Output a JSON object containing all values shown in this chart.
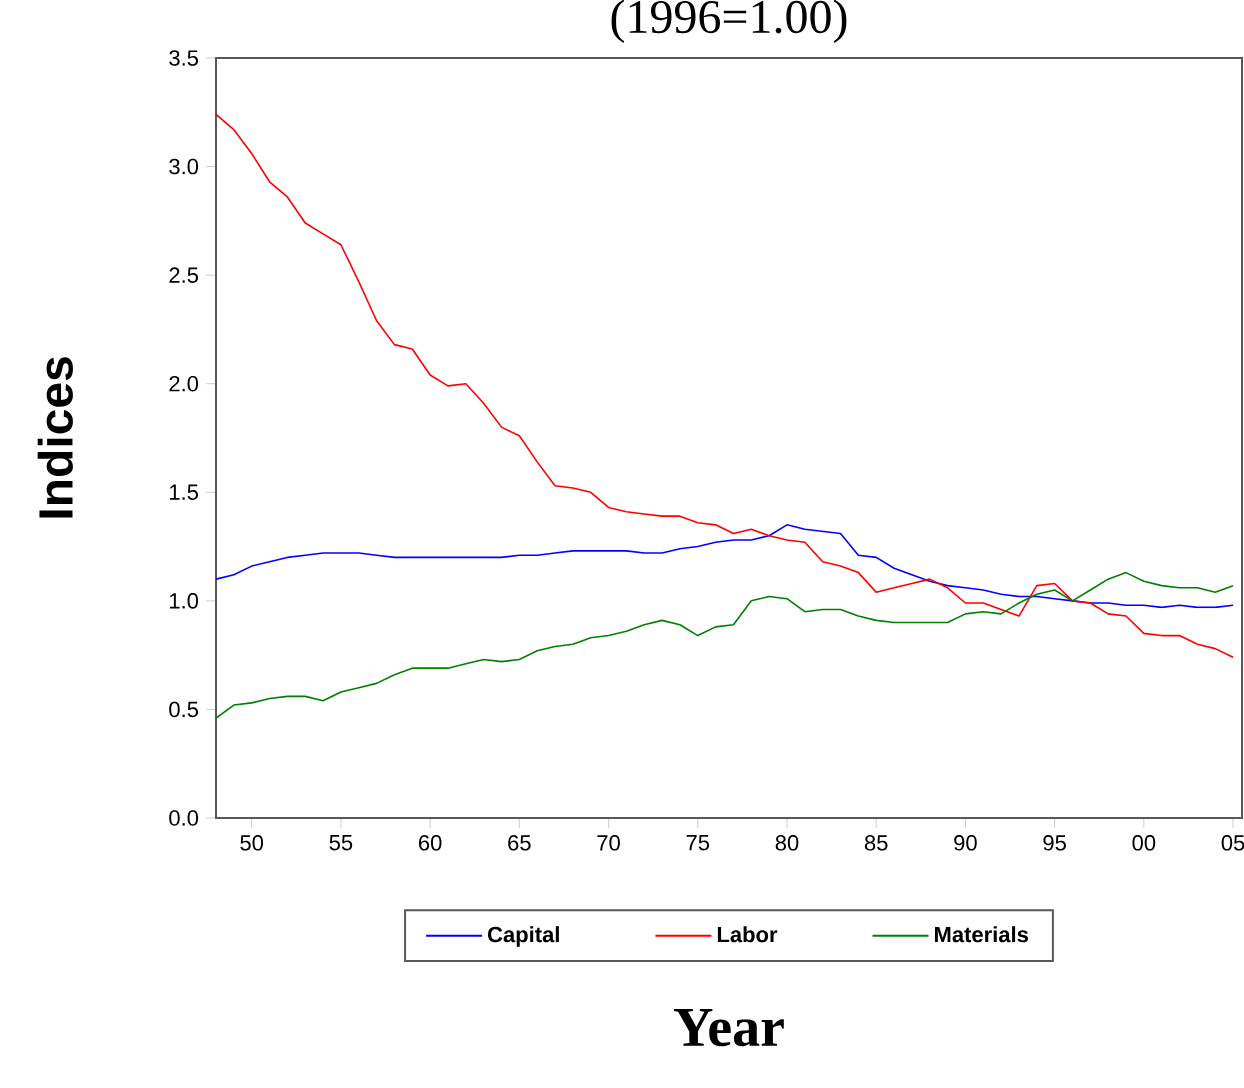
{
  "chart_data": {
    "type": "line",
    "title": "(1996=1.00)",
    "xlabel": "Year",
    "ylabel": "Indices",
    "x": [
      1948,
      1949,
      1950,
      1951,
      1952,
      1953,
      1954,
      1955,
      1956,
      1957,
      1958,
      1959,
      1960,
      1961,
      1962,
      1963,
      1964,
      1965,
      1966,
      1967,
      1968,
      1969,
      1970,
      1971,
      1972,
      1973,
      1974,
      1975,
      1976,
      1977,
      1978,
      1979,
      1980,
      1981,
      1982,
      1983,
      1984,
      1985,
      1986,
      1987,
      1988,
      1989,
      1990,
      1991,
      1992,
      1993,
      1994,
      1995,
      1996,
      1997,
      1998,
      1999,
      2000,
      2001,
      2002,
      2003,
      2004,
      2005
    ],
    "series": [
      {
        "name": "Capital",
        "color": "#0000ff",
        "values": [
          1.1,
          1.12,
          1.16,
          1.18,
          1.2,
          1.21,
          1.22,
          1.22,
          1.22,
          1.21,
          1.2,
          1.2,
          1.2,
          1.2,
          1.2,
          1.2,
          1.2,
          1.21,
          1.21,
          1.22,
          1.23,
          1.23,
          1.23,
          1.23,
          1.22,
          1.22,
          1.24,
          1.25,
          1.27,
          1.28,
          1.28,
          1.3,
          1.35,
          1.33,
          1.32,
          1.31,
          1.21,
          1.2,
          1.15,
          1.12,
          1.09,
          1.07,
          1.06,
          1.05,
          1.03,
          1.02,
          1.02,
          1.01,
          1.0,
          0.99,
          0.99,
          0.98,
          0.98,
          0.97,
          0.98,
          0.97,
          0.97,
          0.98
        ]
      },
      {
        "name": "Labor",
        "color": "#ff0000",
        "values": [
          3.24,
          3.17,
          3.06,
          2.93,
          2.86,
          2.74,
          2.69,
          2.64,
          2.47,
          2.29,
          2.18,
          2.16,
          2.04,
          1.99,
          2.0,
          1.91,
          1.8,
          1.76,
          1.64,
          1.53,
          1.52,
          1.5,
          1.43,
          1.41,
          1.4,
          1.39,
          1.39,
          1.36,
          1.35,
          1.31,
          1.33,
          1.3,
          1.28,
          1.27,
          1.18,
          1.16,
          1.13,
          1.04,
          1.06,
          1.08,
          1.1,
          1.06,
          0.99,
          0.99,
          0.96,
          0.93,
          1.07,
          1.08,
          1.0,
          0.99,
          0.94,
          0.93,
          0.85,
          0.84,
          0.84,
          0.8,
          0.78,
          0.74
        ]
      },
      {
        "name": "Materials",
        "color": "#008000",
        "values": [
          0.46,
          0.52,
          0.53,
          0.55,
          0.56,
          0.56,
          0.54,
          0.58,
          0.6,
          0.62,
          0.66,
          0.69,
          0.69,
          0.69,
          0.71,
          0.73,
          0.72,
          0.73,
          0.77,
          0.79,
          0.8,
          0.83,
          0.84,
          0.86,
          0.89,
          0.91,
          0.89,
          0.84,
          0.88,
          0.89,
          1.0,
          1.02,
          1.01,
          0.95,
          0.96,
          0.96,
          0.93,
          0.91,
          0.9,
          0.9,
          0.9,
          0.9,
          0.94,
          0.95,
          0.94,
          0.99,
          1.03,
          1.05,
          1.0,
          1.05,
          1.1,
          1.13,
          1.09,
          1.07,
          1.06,
          1.06,
          1.04,
          1.07
        ]
      }
    ],
    "xlim": [
      1948,
      2005.5
    ],
    "ylim": [
      0,
      3.5
    ],
    "xticks": [
      {
        "value": 1950,
        "label": "50"
      },
      {
        "value": 1955,
        "label": "55"
      },
      {
        "value": 1960,
        "label": "60"
      },
      {
        "value": 1965,
        "label": "65"
      },
      {
        "value": 1970,
        "label": "70"
      },
      {
        "value": 1975,
        "label": "75"
      },
      {
        "value": 1980,
        "label": "80"
      },
      {
        "value": 1985,
        "label": "85"
      },
      {
        "value": 1990,
        "label": "90"
      },
      {
        "value": 1995,
        "label": "95"
      },
      {
        "value": 2000,
        "label": "00"
      },
      {
        "value": 2005,
        "label": "05"
      }
    ],
    "yticks": [
      {
        "value": 0,
        "label": "0.0"
      },
      {
        "value": 0.5,
        "label": "0.5"
      },
      {
        "value": 1,
        "label": "1.0"
      },
      {
        "value": 1.5,
        "label": "1.5"
      },
      {
        "value": 2,
        "label": "2.0"
      },
      {
        "value": 2.5,
        "label": "2.5"
      },
      {
        "value": 3,
        "label": "3.0"
      },
      {
        "value": 3.5,
        "label": "3.5"
      }
    ],
    "legend": "bottom",
    "marker": "none",
    "line_style": "solid"
  }
}
